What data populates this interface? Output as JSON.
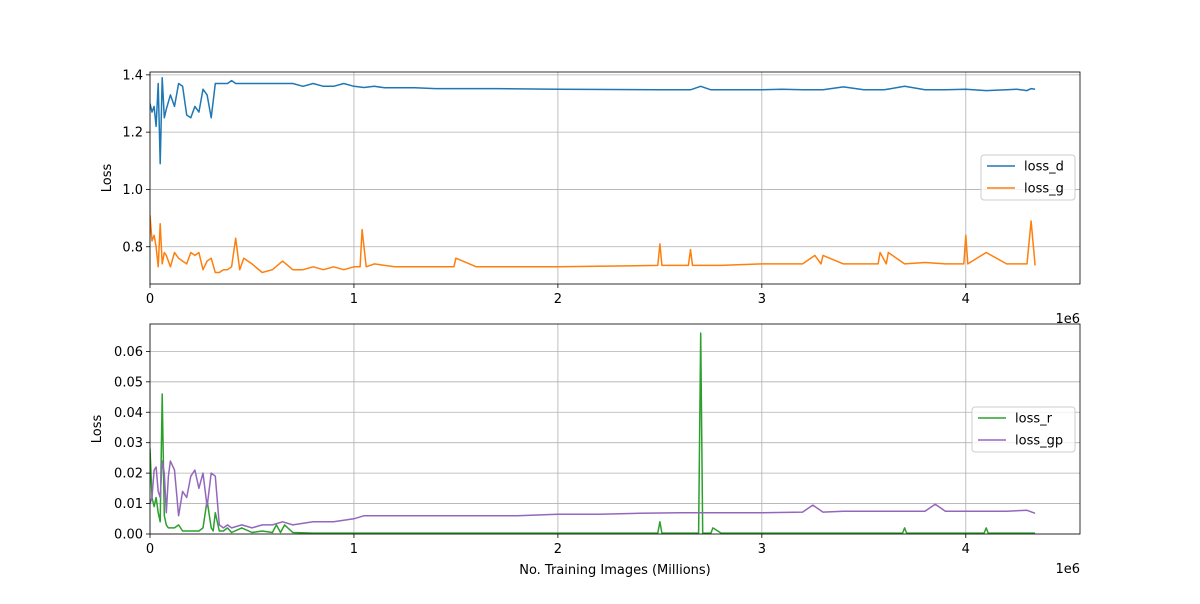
{
  "chart_data": [
    {
      "type": "line",
      "xlabel": "",
      "ylabel": "Loss",
      "xlim": [
        0,
        4560000
      ],
      "ylim": [
        0.67,
        1.41
      ],
      "x_ticks": [
        0,
        1000000,
        2000000,
        3000000,
        4000000
      ],
      "x_tick_labels": [
        "0",
        "1",
        "2",
        "3",
        "4"
      ],
      "x_offset_label": "1e6",
      "y_ticks": [
        0.8,
        1.0,
        1.2,
        1.4
      ],
      "y_tick_labels": [
        "0.8",
        "1.0",
        "1.2",
        "1.4"
      ],
      "grid": true,
      "legend_position": "center-right",
      "series": [
        {
          "name": "loss_d",
          "color": "#1f77b4",
          "x": [
            0,
            10000,
            20000,
            30000,
            40000,
            50000,
            60000,
            70000,
            80000,
            100000,
            120000,
            140000,
            160000,
            180000,
            200000,
            220000,
            240000,
            260000,
            280000,
            300000,
            320000,
            340000,
            360000,
            380000,
            400000,
            420000,
            440000,
            460000,
            500000,
            550000,
            600000,
            650000,
            700000,
            750000,
            800000,
            850000,
            900000,
            950000,
            1000000,
            1050000,
            1100000,
            1150000,
            1200000,
            1300000,
            1400000,
            1500000,
            1600000,
            1700000,
            2000000,
            2500000,
            2650000,
            2700000,
            2750000,
            3000000,
            3100000,
            3200000,
            3300000,
            3400000,
            3500000,
            3600000,
            3700000,
            3800000,
            3900000,
            4000000,
            4100000,
            4200000,
            4250000,
            4300000,
            4320000,
            4340000
          ],
          "y": [
            1.3,
            1.27,
            1.29,
            1.22,
            1.37,
            1.09,
            1.39,
            1.25,
            1.28,
            1.33,
            1.29,
            1.37,
            1.36,
            1.26,
            1.25,
            1.29,
            1.27,
            1.35,
            1.33,
            1.25,
            1.37,
            1.37,
            1.37,
            1.37,
            1.38,
            1.37,
            1.37,
            1.37,
            1.37,
            1.37,
            1.37,
            1.37,
            1.37,
            1.36,
            1.37,
            1.36,
            1.36,
            1.37,
            1.36,
            1.356,
            1.36,
            1.355,
            1.355,
            1.355,
            1.352,
            1.352,
            1.352,
            1.352,
            1.35,
            1.348,
            1.348,
            1.36,
            1.348,
            1.348,
            1.35,
            1.348,
            1.348,
            1.358,
            1.348,
            1.348,
            1.36,
            1.348,
            1.348,
            1.35,
            1.345,
            1.348,
            1.35,
            1.345,
            1.352,
            1.35
          ]
        },
        {
          "name": "loss_g",
          "color": "#ff7f0e",
          "x": [
            0,
            10000,
            20000,
            30000,
            40000,
            50000,
            60000,
            70000,
            80000,
            100000,
            120000,
            140000,
            160000,
            180000,
            200000,
            220000,
            240000,
            260000,
            280000,
            300000,
            320000,
            340000,
            360000,
            380000,
            400000,
            420000,
            440000,
            460000,
            500000,
            550000,
            600000,
            650000,
            700000,
            750000,
            800000,
            850000,
            900000,
            950000,
            1000000,
            1030000,
            1040000,
            1060000,
            1100000,
            1200000,
            1300000,
            1400000,
            1490000,
            1500000,
            1600000,
            1700000,
            2000000,
            2490000,
            2500000,
            2510000,
            2640000,
            2650000,
            2660000,
            2800000,
            3000000,
            3200000,
            3260000,
            3290000,
            3300000,
            3400000,
            3500000,
            3570000,
            3580000,
            3610000,
            3620000,
            3700000,
            3800000,
            3900000,
            3990000,
            4000000,
            4010000,
            4100000,
            4200000,
            4300000,
            4320000,
            4340000
          ],
          "y": [
            0.91,
            0.82,
            0.84,
            0.8,
            0.73,
            0.88,
            0.74,
            0.78,
            0.77,
            0.73,
            0.78,
            0.76,
            0.75,
            0.74,
            0.78,
            0.77,
            0.78,
            0.72,
            0.75,
            0.76,
            0.71,
            0.71,
            0.72,
            0.72,
            0.73,
            0.83,
            0.72,
            0.76,
            0.74,
            0.71,
            0.72,
            0.75,
            0.72,
            0.72,
            0.73,
            0.72,
            0.73,
            0.72,
            0.73,
            0.73,
            0.86,
            0.73,
            0.74,
            0.73,
            0.73,
            0.73,
            0.73,
            0.76,
            0.73,
            0.73,
            0.73,
            0.735,
            0.81,
            0.735,
            0.735,
            0.79,
            0.735,
            0.735,
            0.74,
            0.74,
            0.77,
            0.74,
            0.77,
            0.74,
            0.74,
            0.74,
            0.78,
            0.74,
            0.78,
            0.74,
            0.745,
            0.74,
            0.74,
            0.84,
            0.74,
            0.78,
            0.74,
            0.74,
            0.89,
            0.735
          ]
        }
      ]
    },
    {
      "type": "line",
      "xlabel": "No. Training Images (Millions)",
      "ylabel": "Loss",
      "xlim": [
        0,
        4560000
      ],
      "ylim": [
        0,
        0.069
      ],
      "x_ticks": [
        0,
        1000000,
        2000000,
        3000000,
        4000000
      ],
      "x_tick_labels": [
        "0",
        "1",
        "2",
        "3",
        "4"
      ],
      "x_offset_label": "1e6",
      "y_ticks": [
        0,
        0.01,
        0.02,
        0.03,
        0.04,
        0.05,
        0.06
      ],
      "y_tick_labels": [
        "0.00",
        "0.01",
        "0.02",
        "0.03",
        "0.04",
        "0.05",
        "0.06"
      ],
      "grid": true,
      "legend_position": "center-right",
      "series": [
        {
          "name": "loss_r",
          "color": "#2ca02c",
          "x": [
            0,
            10000,
            20000,
            30000,
            40000,
            50000,
            60000,
            70000,
            80000,
            90000,
            100000,
            120000,
            140000,
            160000,
            180000,
            200000,
            220000,
            240000,
            260000,
            280000,
            300000,
            310000,
            320000,
            340000,
            360000,
            380000,
            400000,
            450000,
            500000,
            550000,
            600000,
            620000,
            640000,
            660000,
            700000,
            800000,
            1000000,
            1200000,
            1500000,
            2000000,
            2490000,
            2500000,
            2510000,
            2600000,
            2690000,
            2700000,
            2710000,
            2750000,
            2760000,
            2800000,
            3000000,
            3500000,
            3690000,
            3700000,
            3710000,
            4000000,
            4090000,
            4100000,
            4110000,
            4300000,
            4340000
          ],
          "y": [
            0.028,
            0.012,
            0.009,
            0.012,
            0.007,
            0.004,
            0.046,
            0.006,
            0.003,
            0.002,
            0.002,
            0.002,
            0.003,
            0.001,
            0.001,
            0.001,
            0.001,
            0.001,
            0.002,
            0.011,
            0.002,
            0.001,
            0.007,
            0.001,
            0.001,
            0.002,
            0.0005,
            0.002,
            0.0005,
            0.001,
            0.0005,
            0.003,
            0.0005,
            0.003,
            0.0005,
            0.0003,
            0.0003,
            0.0003,
            0.0003,
            0.0003,
            0.0003,
            0.004,
            0.0003,
            0.0003,
            0.0003,
            0.066,
            0.0003,
            0.0003,
            0.002,
            0.0003,
            0.0003,
            0.0003,
            0.0003,
            0.002,
            0.0003,
            0.0003,
            0.0003,
            0.002,
            0.0003,
            0.0003,
            0.0003
          ]
        },
        {
          "name": "loss_gp",
          "color": "#9467bd",
          "x": [
            0,
            10000,
            20000,
            30000,
            40000,
            50000,
            60000,
            70000,
            80000,
            90000,
            100000,
            120000,
            140000,
            160000,
            180000,
            200000,
            220000,
            240000,
            260000,
            280000,
            300000,
            320000,
            340000,
            360000,
            380000,
            400000,
            450000,
            500000,
            550000,
            600000,
            650000,
            700000,
            800000,
            900000,
            1000000,
            1050000,
            1100000,
            1200000,
            1400000,
            1600000,
            1800000,
            2000000,
            2200000,
            2400000,
            2600000,
            2800000,
            3000000,
            3200000,
            3250000,
            3300000,
            3400000,
            3500000,
            3600000,
            3700000,
            3800000,
            3850000,
            3900000,
            4000000,
            4100000,
            4200000,
            4300000,
            4340000
          ],
          "y": [
            0.01,
            0.012,
            0.021,
            0.022,
            0.014,
            0.012,
            0.024,
            0.02,
            0.007,
            0.019,
            0.024,
            0.021,
            0.006,
            0.014,
            0.012,
            0.019,
            0.021,
            0.015,
            0.02,
            0.009,
            0.02,
            0.019,
            0.003,
            0.002,
            0.003,
            0.002,
            0.003,
            0.002,
            0.003,
            0.003,
            0.004,
            0.003,
            0.004,
            0.004,
            0.005,
            0.006,
            0.006,
            0.006,
            0.006,
            0.006,
            0.006,
            0.0065,
            0.0065,
            0.0068,
            0.007,
            0.007,
            0.007,
            0.0072,
            0.0095,
            0.0072,
            0.0075,
            0.0075,
            0.0075,
            0.0075,
            0.0075,
            0.0098,
            0.0075,
            0.0075,
            0.0075,
            0.0075,
            0.0078,
            0.0068
          ]
        }
      ]
    }
  ]
}
